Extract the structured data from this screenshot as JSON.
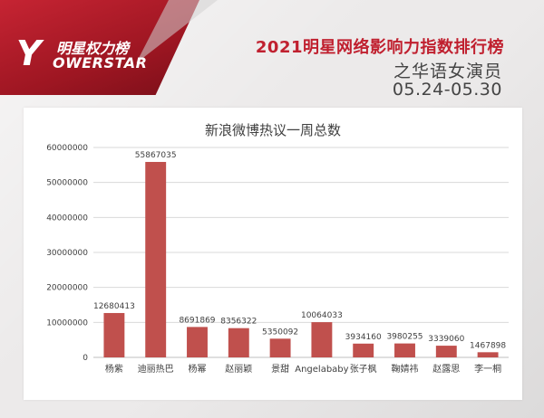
{
  "header": {
    "logo_cn": "明星权力榜",
    "logo_y": "Y",
    "logo_en": "OWERSTAR",
    "title": "2021明星网络影响力指数排行榜",
    "subtitle": "之华语女演员",
    "date_range": "05.24-05.30"
  },
  "colors": {
    "bar": "#c0504d",
    "brand_red": "#c0202f",
    "grid": "#d9d9d9"
  },
  "chart_data": {
    "type": "bar",
    "title": "新浪微博热议一周总数",
    "categories": [
      "杨紫",
      "迪丽热巴",
      "杨幂",
      "赵丽颖",
      "景甜",
      "Angelababy",
      "张子枫",
      "鞠婧祎",
      "赵露思",
      "李一桐"
    ],
    "values": [
      12680413,
      55867035,
      8691869,
      8356322,
      5350092,
      10064033,
      3934160,
      3980255,
      3339060,
      1467898
    ],
    "value_labels": [
      "12680413",
      "55867035",
      "8691869",
      "8356322",
      "5350092",
      "10064033",
      "3934160",
      "3980255",
      "3339060",
      "1467898"
    ],
    "y_ticks": [
      0,
      10000000,
      20000000,
      30000000,
      40000000,
      50000000,
      60000000
    ],
    "y_tick_labels": [
      "0",
      "10000000",
      "20000000",
      "30000000",
      "40000000",
      "50000000",
      "60000000"
    ],
    "ylim": [
      0,
      60000000
    ],
    "grid": true,
    "legend": "none",
    "xlabel": "",
    "ylabel": ""
  }
}
